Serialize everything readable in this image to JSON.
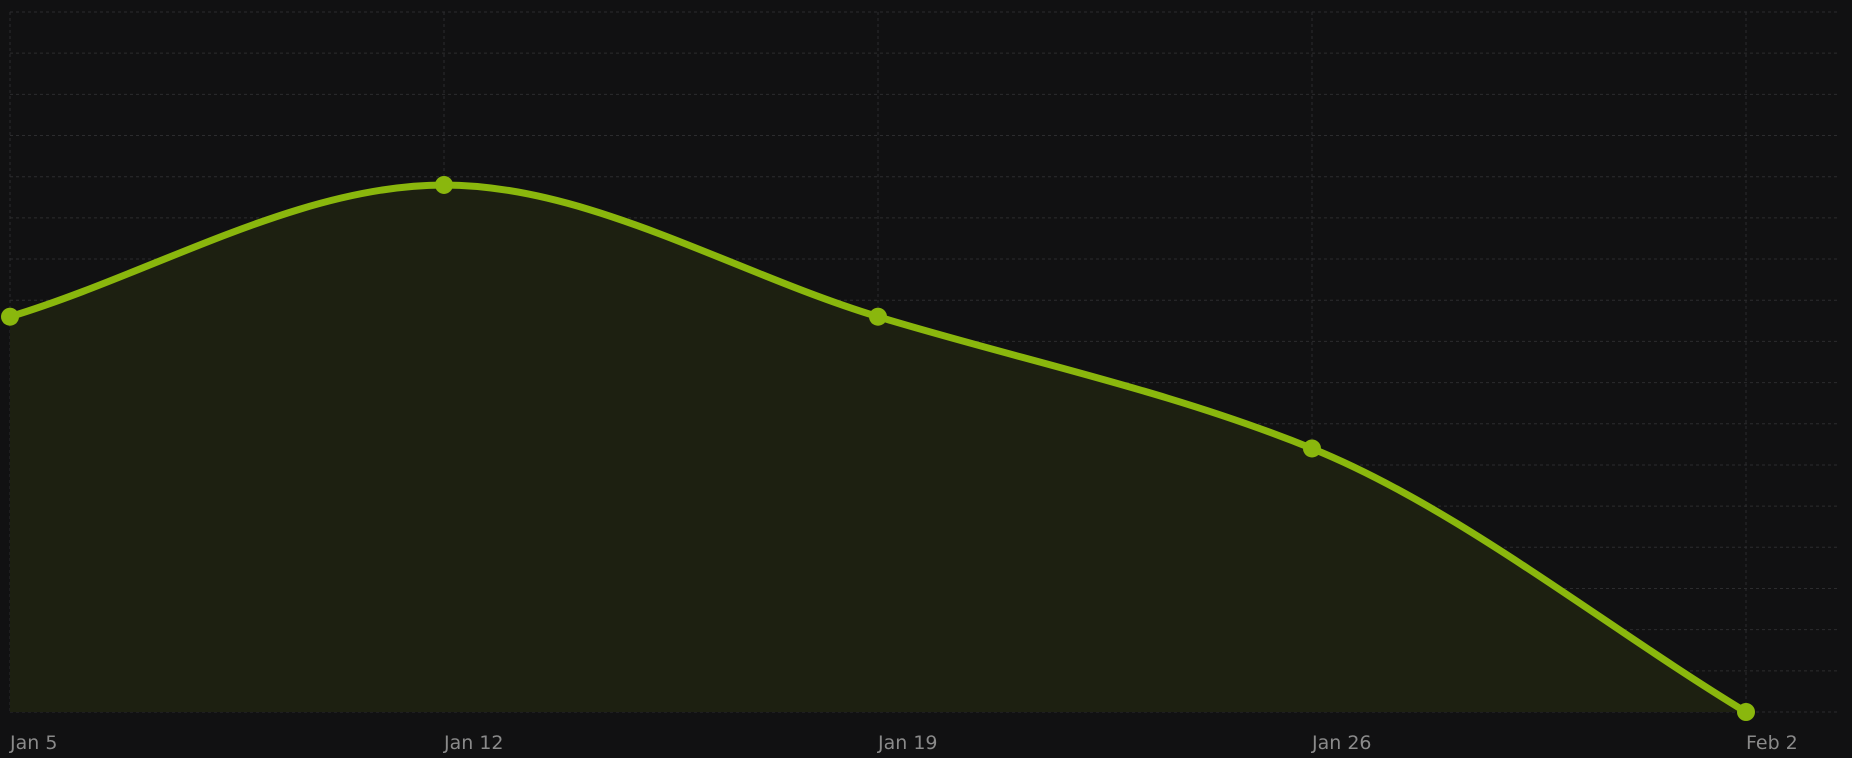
{
  "chart_data": {
    "type": "area",
    "title": "",
    "xlabel": "",
    "ylabel": "",
    "x": [
      "Jan 5",
      "Jan 12",
      "Jan 19",
      "Jan 26",
      "Feb 2"
    ],
    "tick_labels": [
      "Jan 5",
      "Jan 12",
      "Jan 19",
      "Jan 26",
      "Feb 2"
    ],
    "series": [
      {
        "values": [
          48,
          64,
          48,
          32,
          0
        ]
      }
    ],
    "ylim": [
      0,
      85
    ],
    "grid": true,
    "smooth": true,
    "show_markers": true,
    "colors": {
      "line": "#8ab70d",
      "fill": "#1d2011",
      "background": "#111112",
      "grid": "#2c2c2e",
      "tick_label": "#8a8a8a"
    }
  }
}
